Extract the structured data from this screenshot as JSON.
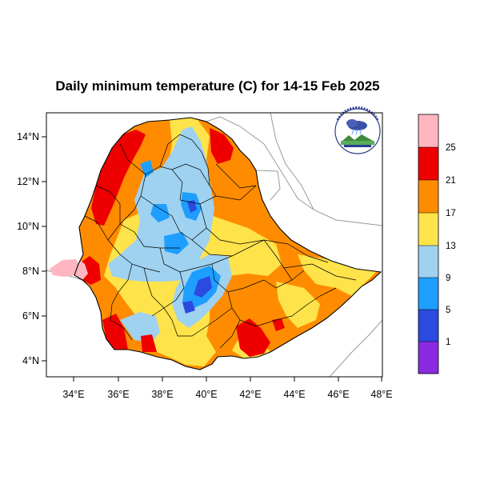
{
  "title": "Daily minimum temperature (C) for 14-15 Feb 2025",
  "axes": {
    "lon_ticks": [
      "34°E",
      "36°E",
      "38°E",
      "40°E",
      "42°E",
      "44°E",
      "46°E",
      "48°E"
    ],
    "lat_ticks": [
      "14°N",
      "12°N",
      "10°N",
      "8°N",
      "6°N",
      "4°N"
    ],
    "lon_range": [
      33,
      48.2
    ],
    "lat_range": [
      3.2,
      15.1
    ]
  },
  "legend": {
    "labels": [
      "25",
      "21",
      "17",
      "13",
      "9",
      "5",
      "1"
    ],
    "colors_top_to_bottom": [
      "#ffb6c1",
      "#ee0000",
      "#ff8c00",
      "#ffe34a",
      "#9fd2f0",
      "#1e9eff",
      "#2a4ae0",
      "#8a2be2"
    ]
  },
  "logo": {
    "name": "meteorology-agency-logo"
  },
  "colors": {
    "pink": "#ffb6c1",
    "red": "#ee0000",
    "orange": "#ff8c00",
    "yellow": "#ffe34a",
    "lightblue": "#9fd2f0",
    "blue": "#1e9eff",
    "darkblue": "#2a4ae0",
    "purple": "#8a2be2"
  }
}
